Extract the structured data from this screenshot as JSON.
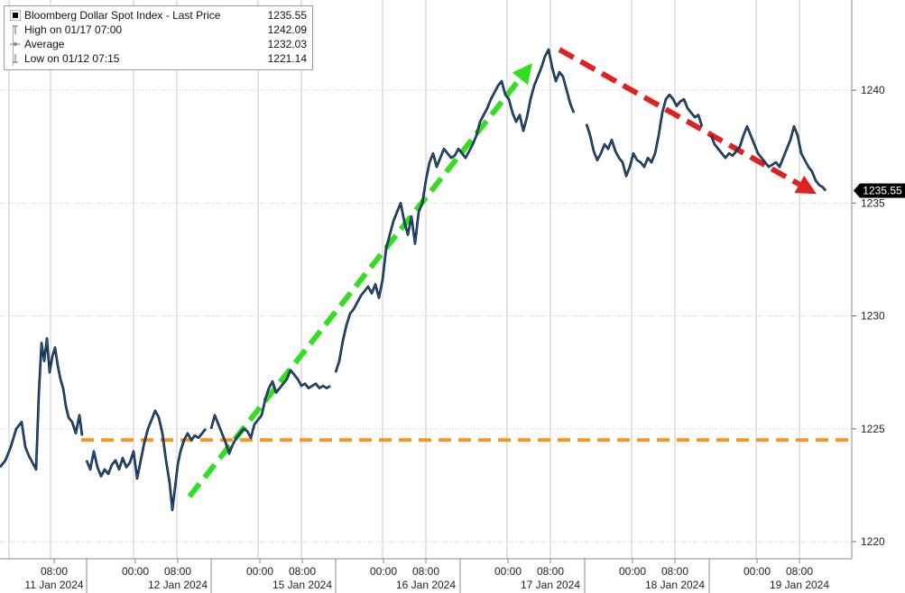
{
  "chart_data": {
    "type": "line",
    "title": "",
    "xlabel": "",
    "ylabel": "",
    "ylim": [
      1219.0,
      1244.0
    ],
    "y_ticks": [
      "1220",
      "1225",
      "1230",
      "1235",
      "1240"
    ],
    "last_price_label": "1235.55",
    "x_tick_labels": [
      {
        "time": "08:00",
        "date": "11 Jan 2024"
      },
      {
        "time": "00:00",
        "date": ""
      },
      {
        "time": "08:00",
        "date": "12 Jan 2024"
      },
      {
        "time": "00:00",
        "date": ""
      },
      {
        "time": "08:00",
        "date": "15 Jan 2024"
      },
      {
        "time": "00:00",
        "date": ""
      },
      {
        "time": "08:00",
        "date": "16 Jan 2024"
      },
      {
        "time": "00:00",
        "date": ""
      },
      {
        "time": "08:00",
        "date": "17 Jan 2024"
      },
      {
        "time": "00:00",
        "date": ""
      },
      {
        "time": "08:00",
        "date": "18 Jan 2024"
      },
      {
        "time": "00:00",
        "date": ""
      },
      {
        "time": "08:00",
        "date": "19 Jan 2024"
      }
    ],
    "legend": {
      "series": {
        "label": "Bloomberg Dollar Spot Index - Last Price",
        "value": "1235.55"
      },
      "high": {
        "label": "High on 01/17 07:00",
        "value": "1242.09"
      },
      "average": {
        "label": "Average",
        "value": "1232.03"
      },
      "low": {
        "label": "Low on 01/12 07:15",
        "value": "1221.14"
      }
    },
    "series": [
      {
        "name": "Bloomberg Dollar Spot Index - Last Price",
        "color": "#1f5fa8",
        "segments": [
          [
            [
              0,
              1223.3
            ],
            [
              6,
              1223.6
            ],
            [
              12,
              1224.2
            ],
            [
              18,
              1225.0
            ],
            [
              24,
              1225.3
            ],
            [
              28,
              1224.2
            ],
            [
              32,
              1223.8
            ],
            [
              36,
              1223.5
            ],
            [
              40,
              1223.2
            ],
            [
              43,
              1226.5
            ],
            [
              46,
              1228.8
            ],
            [
              49,
              1228.0
            ],
            [
              52,
              1229.0
            ],
            [
              55,
              1227.5
            ],
            [
              58,
              1228.2
            ],
            [
              61,
              1228.6
            ],
            [
              64,
              1227.8
            ],
            [
              67,
              1227.2
            ],
            [
              70,
              1226.8
            ],
            [
              73,
              1226.0
            ],
            [
              76,
              1225.5
            ],
            [
              80,
              1225.3
            ],
            [
              84,
              1224.8
            ],
            [
              88,
              1225.6
            ],
            [
              91,
              1224.7
            ]
          ],
          [
            [
              96,
              1223.6
            ],
            [
              100,
              1223.2
            ],
            [
              104,
              1224.0
            ],
            [
              108,
              1223.3
            ],
            [
              112,
              1222.9
            ],
            [
              116,
              1223.2
            ],
            [
              120,
              1223.0
            ],
            [
              124,
              1223.4
            ],
            [
              128,
              1223.6
            ],
            [
              132,
              1223.2
            ],
            [
              136,
              1223.7
            ],
            [
              140,
              1223.3
            ],
            [
              144,
              1223.5
            ],
            [
              148,
              1224.0
            ],
            [
              152,
              1222.8
            ],
            [
              156,
              1223.6
            ],
            [
              160,
              1224.4
            ],
            [
              164,
              1225.0
            ],
            [
              168,
              1225.4
            ],
            [
              172,
              1225.8
            ],
            [
              176,
              1225.5
            ],
            [
              180,
              1224.8
            ],
            [
              184,
              1223.6
            ],
            [
              188,
              1222.6
            ],
            [
              191,
              1221.4
            ],
            [
              194,
              1222.4
            ],
            [
              197,
              1223.4
            ],
            [
              200,
              1224.0
            ],
            [
              204,
              1224.5
            ],
            [
              208,
              1224.8
            ],
            [
              212,
              1224.5
            ],
            [
              216,
              1224.7
            ],
            [
              220,
              1224.6
            ],
            [
              224,
              1224.8
            ],
            [
              228,
              1225.0
            ]
          ],
          [
            [
              234,
              1225.0
            ],
            [
              238,
              1225.6
            ],
            [
              242,
              1225.2
            ],
            [
              246,
              1224.8
            ],
            [
              250,
              1224.4
            ],
            [
              254,
              1223.9
            ],
            [
              258,
              1224.3
            ],
            [
              262,
              1224.6
            ],
            [
              266,
              1224.8
            ],
            [
              270,
              1225.0
            ],
            [
              274,
              1224.9
            ],
            [
              278,
              1224.6
            ],
            [
              282,
              1225.2
            ],
            [
              286,
              1225.4
            ],
            [
              290,
              1225.6
            ],
            [
              294,
              1226.3
            ],
            [
              298,
              1226.8
            ],
            [
              302,
              1227.1
            ],
            [
              306,
              1226.6
            ],
            [
              310,
              1226.8
            ],
            [
              314,
              1227.0
            ],
            [
              318,
              1227.2
            ],
            [
              322,
              1227.6
            ],
            [
              326,
              1227.4
            ],
            [
              330,
              1227.2
            ],
            [
              334,
              1226.9
            ],
            [
              338,
              1227.0
            ],
            [
              342,
              1226.8
            ],
            [
              346,
              1226.9
            ],
            [
              350,
              1227.0
            ],
            [
              354,
              1226.8
            ],
            [
              358,
              1226.9
            ],
            [
              362,
              1226.8
            ],
            [
              366,
              1226.9
            ]
          ],
          [
            [
              372,
              1227.5
            ],
            [
              376,
              1228.0
            ],
            [
              380,
              1228.9
            ],
            [
              384,
              1229.6
            ],
            [
              388,
              1230.1
            ],
            [
              392,
              1230.3
            ],
            [
              396,
              1230.6
            ],
            [
              400,
              1230.9
            ],
            [
              404,
              1231.1
            ],
            [
              408,
              1231.3
            ],
            [
              412,
              1231.0
            ],
            [
              416,
              1231.4
            ],
            [
              420,
              1230.8
            ],
            [
              424,
              1231.6
            ],
            [
              428,
              1233.0
            ],
            [
              432,
              1233.6
            ],
            [
              436,
              1234.2
            ],
            [
              440,
              1234.6
            ],
            [
              444,
              1235.0
            ],
            [
              448,
              1234.2
            ],
            [
              452,
              1233.6
            ],
            [
              456,
              1234.4
            ],
            [
              460,
              1233.2
            ],
            [
              464,
              1234.6
            ],
            [
              468,
              1235.0
            ],
            [
              472,
              1236.0
            ],
            [
              476,
              1236.8
            ],
            [
              480,
              1237.2
            ],
            [
              484,
              1236.6
            ],
            [
              488,
              1237.0
            ],
            [
              492,
              1237.4
            ],
            [
              496,
              1237.2
            ],
            [
              500,
              1237.0
            ],
            [
              504,
              1237.1
            ],
            [
              508,
              1237.4
            ],
            [
              512,
              1237.2
            ],
            [
              516,
              1237.0
            ],
            [
              520,
              1237.3
            ],
            [
              524,
              1237.6
            ],
            [
              528,
              1238.0
            ],
            [
              532,
              1238.6
            ],
            [
              536,
              1238.9
            ],
            [
              540,
              1239.2
            ],
            [
              544,
              1239.6
            ],
            [
              548,
              1239.9
            ],
            [
              552,
              1240.2
            ],
            [
              556,
              1240.4
            ],
            [
              560,
              1239.8
            ],
            [
              564,
              1239.6
            ],
            [
              568,
              1239.0
            ],
            [
              572,
              1238.6
            ],
            [
              576,
              1238.9
            ],
            [
              580,
              1238.2
            ],
            [
              584,
              1238.8
            ],
            [
              588,
              1239.6
            ],
            [
              592,
              1240.2
            ],
            [
              596,
              1240.6
            ],
            [
              600,
              1241.0
            ],
            [
              604,
              1241.5
            ],
            [
              608,
              1241.8
            ],
            [
              612,
              1241.0
            ],
            [
              616,
              1240.4
            ],
            [
              620,
              1240.8
            ],
            [
              624,
              1240.6
            ],
            [
              628,
              1240.0
            ],
            [
              632,
              1239.4
            ],
            [
              636,
              1239.0
            ]
          ],
          [
            [
              650,
              1238.5
            ],
            [
              654,
              1238.0
            ],
            [
              658,
              1237.3
            ],
            [
              662,
              1236.9
            ],
            [
              666,
              1237.2
            ],
            [
              670,
              1237.6
            ],
            [
              674,
              1237.4
            ],
            [
              678,
              1237.8
            ],
            [
              682,
              1237.3
            ],
            [
              686,
              1237.0
            ],
            [
              690,
              1236.8
            ],
            [
              694,
              1236.2
            ],
            [
              698,
              1236.6
            ],
            [
              702,
              1237.2
            ],
            [
              706,
              1236.9
            ],
            [
              710,
              1236.8
            ],
            [
              714,
              1236.6
            ],
            [
              718,
              1237.0
            ],
            [
              722,
              1236.8
            ],
            [
              726,
              1237.2
            ],
            [
              730,
              1238.0
            ],
            [
              734,
              1239.0
            ],
            [
              738,
              1239.6
            ],
            [
              742,
              1239.8
            ],
            [
              746,
              1239.6
            ],
            [
              750,
              1239.3
            ],
            [
              754,
              1239.5
            ],
            [
              758,
              1239.6
            ],
            [
              762,
              1239.2
            ],
            [
              766,
              1239.0
            ],
            [
              770,
              1238.8
            ],
            [
              774,
              1238.9
            ],
            [
              778,
              1238.4
            ]
          ],
          [
            [
              788,
              1238.0
            ],
            [
              792,
              1237.6
            ],
            [
              796,
              1237.4
            ],
            [
              800,
              1237.2
            ],
            [
              804,
              1237.0
            ],
            [
              808,
              1237.2
            ],
            [
              812,
              1237.1
            ],
            [
              816,
              1237.3
            ],
            [
              820,
              1237.5
            ],
            [
              824,
              1238.0
            ],
            [
              828,
              1238.4
            ],
            [
              832,
              1238.0
            ],
            [
              836,
              1237.6
            ],
            [
              840,
              1237.2
            ],
            [
              844,
              1237.0
            ],
            [
              848,
              1236.8
            ],
            [
              852,
              1236.6
            ],
            [
              856,
              1236.7
            ],
            [
              860,
              1236.8
            ],
            [
              864,
              1236.6
            ],
            [
              868,
              1237.0
            ],
            [
              872,
              1237.4
            ],
            [
              876,
              1237.8
            ],
            [
              880,
              1238.4
            ],
            [
              884,
              1238.0
            ],
            [
              888,
              1237.2
            ],
            [
              892,
              1236.9
            ],
            [
              896,
              1236.6
            ],
            [
              900,
              1236.4
            ],
            [
              904,
              1236.0
            ],
            [
              908,
              1235.8
            ],
            [
              912,
              1235.7
            ],
            [
              915,
              1235.55
            ]
          ]
        ]
      }
    ],
    "annotations": [
      {
        "kind": "horizontal-dashed",
        "color": "#f0962a",
        "y": 1224.5,
        "x_from": 90,
        "x_to": 944
      },
      {
        "kind": "arrow-dashed",
        "color": "#33dd22",
        "from": {
          "x": 210,
          "y": 1222.0
        },
        "to": {
          "x": 590,
          "y": 1241.2
        }
      },
      {
        "kind": "arrow-dashed",
        "color": "#dd2222",
        "from": {
          "x": 620,
          "y": 1241.8
        },
        "to": {
          "x": 905,
          "y": 1235.4
        }
      }
    ]
  }
}
